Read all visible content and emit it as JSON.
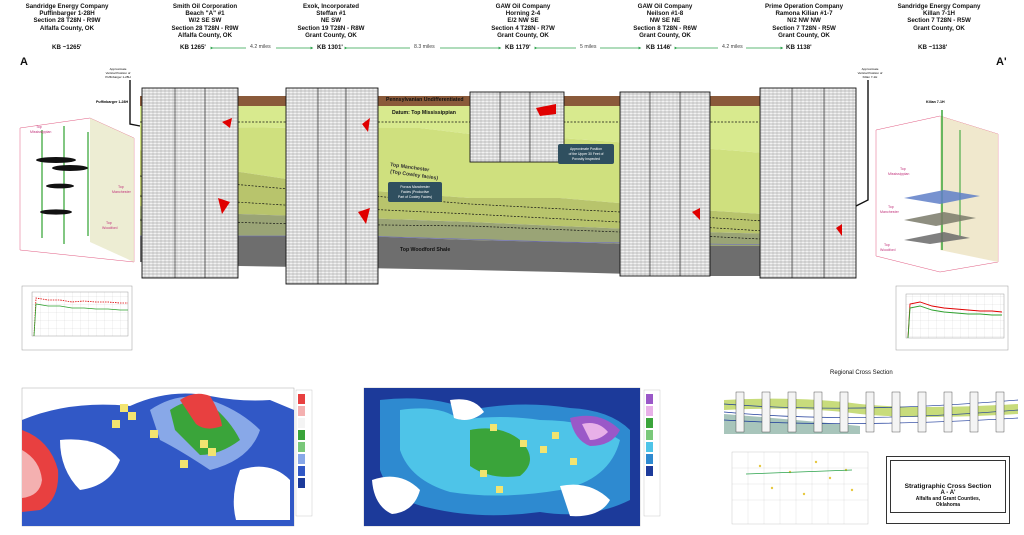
{
  "wells": [
    {
      "company": "Sandridge Energy Company",
      "name": "Puffinbarger 1-28H",
      "location": "Section 28 T28N - R9W",
      "county": "Alfalfa County, OK",
      "kb": "KB ~1265'"
    },
    {
      "company": "Smith Oil Corporation",
      "name": "Beach \"A\" #1",
      "location": "W/2 SE SW",
      "section": "Section 28 T28N - R9W",
      "county": "Alfalfa County, OK",
      "kb": "KB 1265'"
    },
    {
      "company": "Exok, Incorporated",
      "name": "Steffan #1",
      "location": "NE SW",
      "section": "Section 19 T28N - R8W",
      "county": "Grant County, OK",
      "kb": "KB 1301'"
    },
    {
      "company": "GAW Oil Company",
      "name": "Horning 2-4",
      "location": "E/2 NW SE",
      "section": "Section 4 T28N - R7W",
      "county": "Grant County, OK",
      "kb": "KB 1179'"
    },
    {
      "company": "GAW Oil Company",
      "name": "Neilson #1-8",
      "location": "NW SE NE",
      "section": "Section 8 T28N - R6W",
      "county": "Grant County, OK",
      "kb": "KB 1146'"
    },
    {
      "company": "Prime Operation Company",
      "name": "Ramona Kilian #1-7",
      "location": "N/2 NW NW",
      "section": "Section 7 T28N - R5W",
      "county": "Grant County, OK",
      "kb": "KB 1138'"
    },
    {
      "company": "Sandridge Energy Company",
      "name": "Killan 7-1H",
      "location": "Section 7 T28N - R5W",
      "county": "Grant County, OK",
      "kb": "KB ~1138'"
    }
  ],
  "distances": [
    "4.2 miles",
    "8.3 miles",
    "5 miles",
    "4.2 miles"
  ],
  "section_ends": {
    "left": "A",
    "right": "A'"
  },
  "formations": {
    "penn": "Pennsylvanian Undifferentiated",
    "datum": "Datum: Top Mississippian",
    "manchester1": "Top Manchester",
    "manchester2": "(Top Cowley facies)",
    "woodford": "Top Woodford Shale"
  },
  "callouts": {
    "porous1": "Porous Manchester",
    "porous2": "Facies (Productive",
    "porous3": "Part of Cowley Facies)",
    "upper1": "Approximate Position",
    "upper2": "of the Upper 30 Feet of",
    "upper3": "Porosity Inspected",
    "puff_vert1": "Approximate",
    "puff_vert2": "Vertical Position of",
    "puff_vert3": "Puffinbarger 1-28H",
    "kil_vert1": "Approximate",
    "kil_vert2": "Vertical Position of",
    "kil_vert3": "Killan 7-1H"
  },
  "left3d": {
    "title": "Puffinbarger 1-28H",
    "miss": [
      "Top",
      "Mississippian"
    ],
    "manch": [
      "Top",
      "Manchester"
    ],
    "wood": [
      "Top",
      "Woodford"
    ]
  },
  "right3d": {
    "title": "Kilian 7-1H",
    "miss": [
      "Top",
      "Mississippian"
    ],
    "manch": [
      "Top",
      "Manchester"
    ],
    "wood": [
      "Top",
      "Woodford"
    ]
  },
  "regional_title": "Regional Cross Section",
  "titleblock": {
    "title": "Stratigraphic Cross Section",
    "sub": "A - A'",
    "area": "Alfalfa and Grant Counties,",
    "state": "Oklahoma"
  },
  "colors": {
    "penn": "#8a5a3a",
    "miss": "#d4e88a",
    "manchester": "#b8c46c",
    "woodford": "#6e6e6e",
    "red_log": "#e00000",
    "green_well": "#2ea12e"
  }
}
